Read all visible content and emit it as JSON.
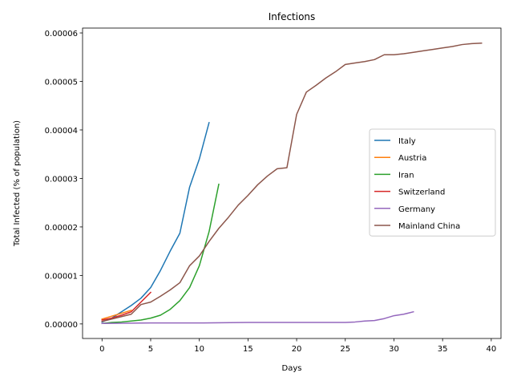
{
  "chart_data": {
    "type": "line",
    "title": "Infections",
    "xlabel": "Days",
    "ylabel": "Total Infected (% of population)",
    "xlim": [
      -2,
      41
    ],
    "ylim": [
      -3e-06,
      6.1e-05
    ],
    "xticks": [
      0,
      5,
      10,
      15,
      20,
      25,
      30,
      35,
      40
    ],
    "xtick_labels": [
      "0",
      "5",
      "10",
      "15",
      "20",
      "25",
      "30",
      "35",
      "40"
    ],
    "yticks": [
      0,
      1e-05,
      2e-05,
      3e-05,
      4e-05,
      5e-05,
      6e-05
    ],
    "ytick_labels": [
      "0.00000",
      "0.00001",
      "0.00002",
      "0.00003",
      "0.00004",
      "0.00005",
      "0.00006"
    ],
    "grid": false,
    "legend_position": "center-right",
    "series": [
      {
        "name": "Italy",
        "color": "#1f77b4",
        "x": [
          0,
          1,
          2,
          3,
          4,
          5,
          6,
          7,
          8,
          9,
          10,
          11
        ],
        "y": [
          4e-07,
          1.2e-06,
          2.5e-06,
          3.8e-06,
          5.3e-06,
          7.5e-06,
          1.1e-05,
          1.5e-05,
          1.87e-05,
          2.82e-05,
          3.4e-05,
          4.15e-05
        ]
      },
      {
        "name": "Austria",
        "color": "#ff7f0e",
        "x": [
          0,
          1,
          2,
          3
        ],
        "y": [
          1e-06,
          1.6e-06,
          2.2e-06,
          2.8e-06
        ]
      },
      {
        "name": "Iran",
        "color": "#2ca02c",
        "x": [
          0,
          1,
          2,
          3,
          4,
          5,
          6,
          7,
          8,
          9,
          10,
          11,
          12
        ],
        "y": [
          1e-07,
          3e-07,
          4e-07,
          6e-07,
          8e-07,
          1.2e-06,
          1.8e-06,
          3e-06,
          4.8e-06,
          7.5e-06,
          1.2e-05,
          1.9e-05,
          2.88e-05
        ]
      },
      {
        "name": "Switzerland",
        "color": "#d62728",
        "x": [
          0,
          1,
          2,
          3,
          4,
          5
        ],
        "y": [
          8e-07,
          1.2e-06,
          1.8e-06,
          2.5e-06,
          4.5e-06,
          6.5e-06
        ]
      },
      {
        "name": "Germany",
        "color": "#9467bd",
        "x": [
          0,
          5,
          10,
          15,
          20,
          25,
          26,
          27,
          28,
          29,
          30,
          31,
          32
        ],
        "y": [
          1e-07,
          2e-07,
          2e-07,
          3e-07,
          3e-07,
          3e-07,
          4e-07,
          6e-07,
          7e-07,
          1.1e-06,
          1.7e-06,
          2e-06,
          2.5e-06
        ]
      },
      {
        "name": "Mainland China",
        "color": "#8c564b",
        "x": [
          0,
          1,
          2,
          3,
          4,
          5,
          6,
          7,
          8,
          9,
          10,
          11,
          12,
          13,
          14,
          15,
          16,
          17,
          18,
          19,
          20,
          21,
          22,
          23,
          24,
          25,
          26,
          27,
          28,
          29,
          30,
          31,
          32,
          33,
          34,
          35,
          36,
          37,
          38,
          39
        ],
        "y": [
          5e-07,
          1e-06,
          1.5e-06,
          2e-06,
          4e-06,
          4.5e-06,
          5.7e-06,
          7e-06,
          8.5e-06,
          1.2e-05,
          1.4e-05,
          1.7e-05,
          1.97e-05,
          2.2e-05,
          2.45e-05,
          2.65e-05,
          2.87e-05,
          3.05e-05,
          3.2e-05,
          3.22e-05,
          4.32e-05,
          4.78e-05,
          4.92e-05,
          5.07e-05,
          5.2e-05,
          5.35e-05,
          5.38e-05,
          5.41e-05,
          5.45e-05,
          5.55e-05,
          5.55e-05,
          5.57e-05,
          5.6e-05,
          5.63e-05,
          5.66e-05,
          5.69e-05,
          5.72e-05,
          5.76e-05,
          5.78e-05,
          5.79e-05
        ]
      }
    ]
  }
}
